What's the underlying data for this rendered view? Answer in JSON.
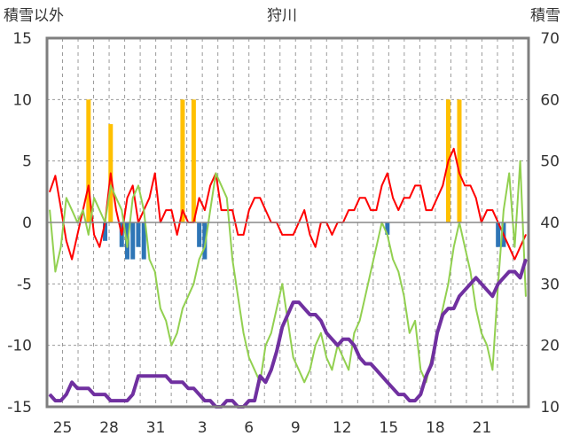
{
  "chart_data": {
    "type": "line",
    "title": "狩川",
    "left_axis_title": "積雪以外",
    "right_axis_title": "積雪",
    "left_axis": {
      "ylim": [
        -15,
        15
      ],
      "ticks": [
        15,
        10,
        5,
        0,
        -5,
        -10,
        -15
      ]
    },
    "right_axis": {
      "ylim": [
        10,
        70
      ],
      "ticks": [
        70,
        60,
        50,
        40,
        30,
        20,
        10
      ]
    },
    "x_tick_labels": [
      "25",
      "28",
      "31",
      "3",
      "6",
      "9",
      "12",
      "15",
      "18",
      "21"
    ],
    "grid": "dashed vertical (daily), dashed horizontal",
    "colors": {
      "frame": "#7f7f7f",
      "grid": "#9a9a9a",
      "temperature": "#ff0000",
      "precipitation": "#ffc000",
      "negative_bars": "#2e75b6",
      "green_series": "#92d050",
      "snow_depth": "#7030a0"
    },
    "series": [
      {
        "axis": "left",
        "type": "line",
        "color": "#ff0000",
        "values": [
          2.5,
          3.8,
          1.2,
          -1.5,
          -3,
          -1,
          1,
          3,
          -1,
          -2,
          0,
          4,
          1,
          -1,
          2,
          3,
          0,
          1,
          2,
          4,
          0,
          1,
          1,
          -1,
          1,
          0,
          0,
          2,
          1,
          3,
          4,
          1,
          1,
          1,
          -1,
          -1,
          1,
          2,
          2,
          1,
          0,
          0,
          -1,
          -1,
          -1,
          0,
          1,
          -1,
          -2,
          0,
          0,
          -1,
          0,
          0,
          1,
          1,
          2,
          2,
          1,
          1,
          3,
          4,
          2,
          1,
          2,
          2,
          3,
          3,
          1,
          1,
          2,
          3,
          5,
          6,
          4,
          3,
          3,
          2,
          0,
          1,
          1,
          0,
          -1,
          -2,
          -3,
          -2,
          -1
        ]
      },
      {
        "axis": "left",
        "type": "bar",
        "color": "#ffc000",
        "values": [
          0,
          0,
          0,
          0,
          0,
          0,
          0,
          10,
          0,
          0,
          0,
          8,
          0,
          0,
          0,
          0,
          0,
          0,
          0,
          0,
          0,
          0,
          0,
          0,
          10,
          0,
          10,
          0,
          0,
          0,
          0,
          0,
          0,
          0,
          0,
          0,
          0,
          0,
          0,
          0,
          0,
          0,
          0,
          0,
          0,
          0,
          0,
          0,
          0,
          0,
          0,
          0,
          0,
          0,
          0,
          0,
          0,
          0,
          0,
          0,
          0,
          0,
          0,
          0,
          0,
          0,
          0,
          0,
          0,
          0,
          0,
          0,
          10,
          0,
          10,
          0,
          0,
          0,
          0,
          0,
          0,
          0,
          0,
          0,
          0,
          0,
          0
        ]
      },
      {
        "axis": "left",
        "type": "bar",
        "color": "#2e75b6",
        "values": [
          0,
          0,
          0,
          0,
          0,
          0,
          0,
          0,
          0,
          0,
          -1.5,
          0,
          0,
          -2,
          -3,
          -3,
          -2,
          -3,
          0,
          0,
          0,
          0,
          0,
          0,
          0,
          0,
          0,
          -2,
          -3,
          0,
          0,
          0,
          0,
          0,
          0,
          0,
          0,
          0,
          0,
          0,
          0,
          0,
          0,
          0,
          0,
          0,
          0,
          0,
          0,
          0,
          0,
          0,
          0,
          0,
          0,
          0,
          0,
          0,
          0,
          0,
          0,
          -1,
          0,
          0,
          0,
          0,
          0,
          0,
          0,
          0,
          0,
          0,
          0,
          0,
          0,
          0,
          0,
          0,
          0,
          0,
          0,
          -2,
          -2,
          0,
          0,
          0,
          0
        ]
      },
      {
        "axis": "left",
        "type": "line",
        "color": "#92d050",
        "values": [
          1,
          -4,
          -2,
          2,
          1,
          0,
          1,
          -1,
          2,
          1,
          0,
          3,
          2,
          1,
          -2,
          2,
          3,
          1,
          -3,
          -4,
          -7,
          -8,
          -10,
          -9,
          -7,
          -6,
          -5,
          -3,
          -2,
          1,
          4,
          3,
          2,
          -3,
          -6,
          -9,
          -11,
          -12,
          -13,
          -10,
          -9,
          -7,
          -5,
          -8,
          -11,
          -12,
          -13,
          -12,
          -10,
          -9,
          -11,
          -12,
          -10,
          -11,
          -12,
          -9,
          -8,
          -6,
          -4,
          -2,
          0,
          -1,
          -3,
          -4,
          -6,
          -9,
          -8,
          -12,
          -13,
          -11,
          -9,
          -7,
          -5,
          -2,
          0,
          -2,
          -4,
          -7,
          -9,
          -10,
          -12,
          -5,
          1,
          4,
          -2,
          5,
          -6
        ]
      },
      {
        "axis": "right",
        "type": "line",
        "color": "#7030a0",
        "values": [
          12,
          11,
          11,
          12,
          14,
          13,
          13,
          13,
          12,
          12,
          12,
          11,
          11,
          11,
          11,
          12,
          15,
          15,
          15,
          15,
          15,
          15,
          14,
          14,
          14,
          13,
          13,
          12,
          11,
          11,
          10,
          10,
          11,
          11,
          10,
          10,
          11,
          11,
          15,
          14,
          16,
          19,
          23,
          25,
          27,
          27,
          26,
          25,
          25,
          24,
          22,
          21,
          20,
          21,
          21,
          20,
          18,
          17,
          17,
          16,
          15,
          14,
          13,
          12,
          12,
          11,
          11,
          12,
          15,
          17,
          22,
          25,
          26,
          26,
          28,
          29,
          30,
          31,
          30,
          29,
          28,
          30,
          31,
          32,
          32,
          31,
          34
        ]
      }
    ]
  }
}
